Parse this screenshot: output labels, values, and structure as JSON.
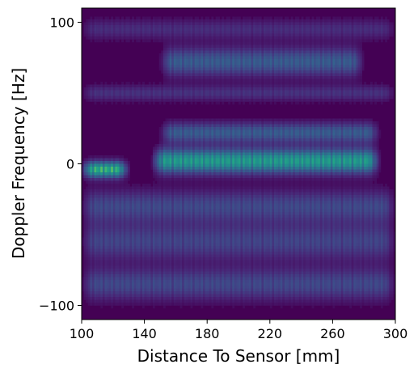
{
  "chart_data": {
    "type": "heatmap",
    "title": "",
    "xlabel": "Distance To Sensor [mm]",
    "ylabel": "Doppler Frequency [Hz]",
    "xlim": [
      100,
      300
    ],
    "ylim": [
      -110,
      110
    ],
    "xticks": [
      100,
      140,
      180,
      220,
      260,
      300
    ],
    "xtick_labels": [
      "100",
      "140",
      "180",
      "220",
      "260",
      "300"
    ],
    "yticks": [
      100,
      0,
      -100
    ],
    "ytick_labels": [
      "100",
      "0",
      "−100"
    ],
    "colormap": "viridis",
    "grid": false,
    "legend": "none",
    "bands": [
      {
        "x": [
          100,
          130
        ],
        "y": -4,
        "spread": 4,
        "intensity": 0.85
      },
      {
        "x": [
          145,
          290
        ],
        "y": 2,
        "spread": 6,
        "intensity": 0.75
      },
      {
        "x": [
          150,
          290
        ],
        "y": 22,
        "spread": 5,
        "intensity": 0.4
      },
      {
        "x": [
          150,
          280
        ],
        "y": 72,
        "spread": 7,
        "intensity": 0.4
      },
      {
        "x": [
          100,
          300
        ],
        "y": -30,
        "spread": 8,
        "intensity": 0.3
      },
      {
        "x": [
          100,
          300
        ],
        "y": -55,
        "spread": 9,
        "intensity": 0.28
      },
      {
        "x": [
          100,
          300
        ],
        "y": -85,
        "spread": 8,
        "intensity": 0.3
      },
      {
        "x": [
          100,
          300
        ],
        "y": 50,
        "spread": 4,
        "intensity": 0.2
      },
      {
        "x": [
          100,
          300
        ],
        "y": 95,
        "spread": 5,
        "intensity": 0.18
      }
    ]
  }
}
